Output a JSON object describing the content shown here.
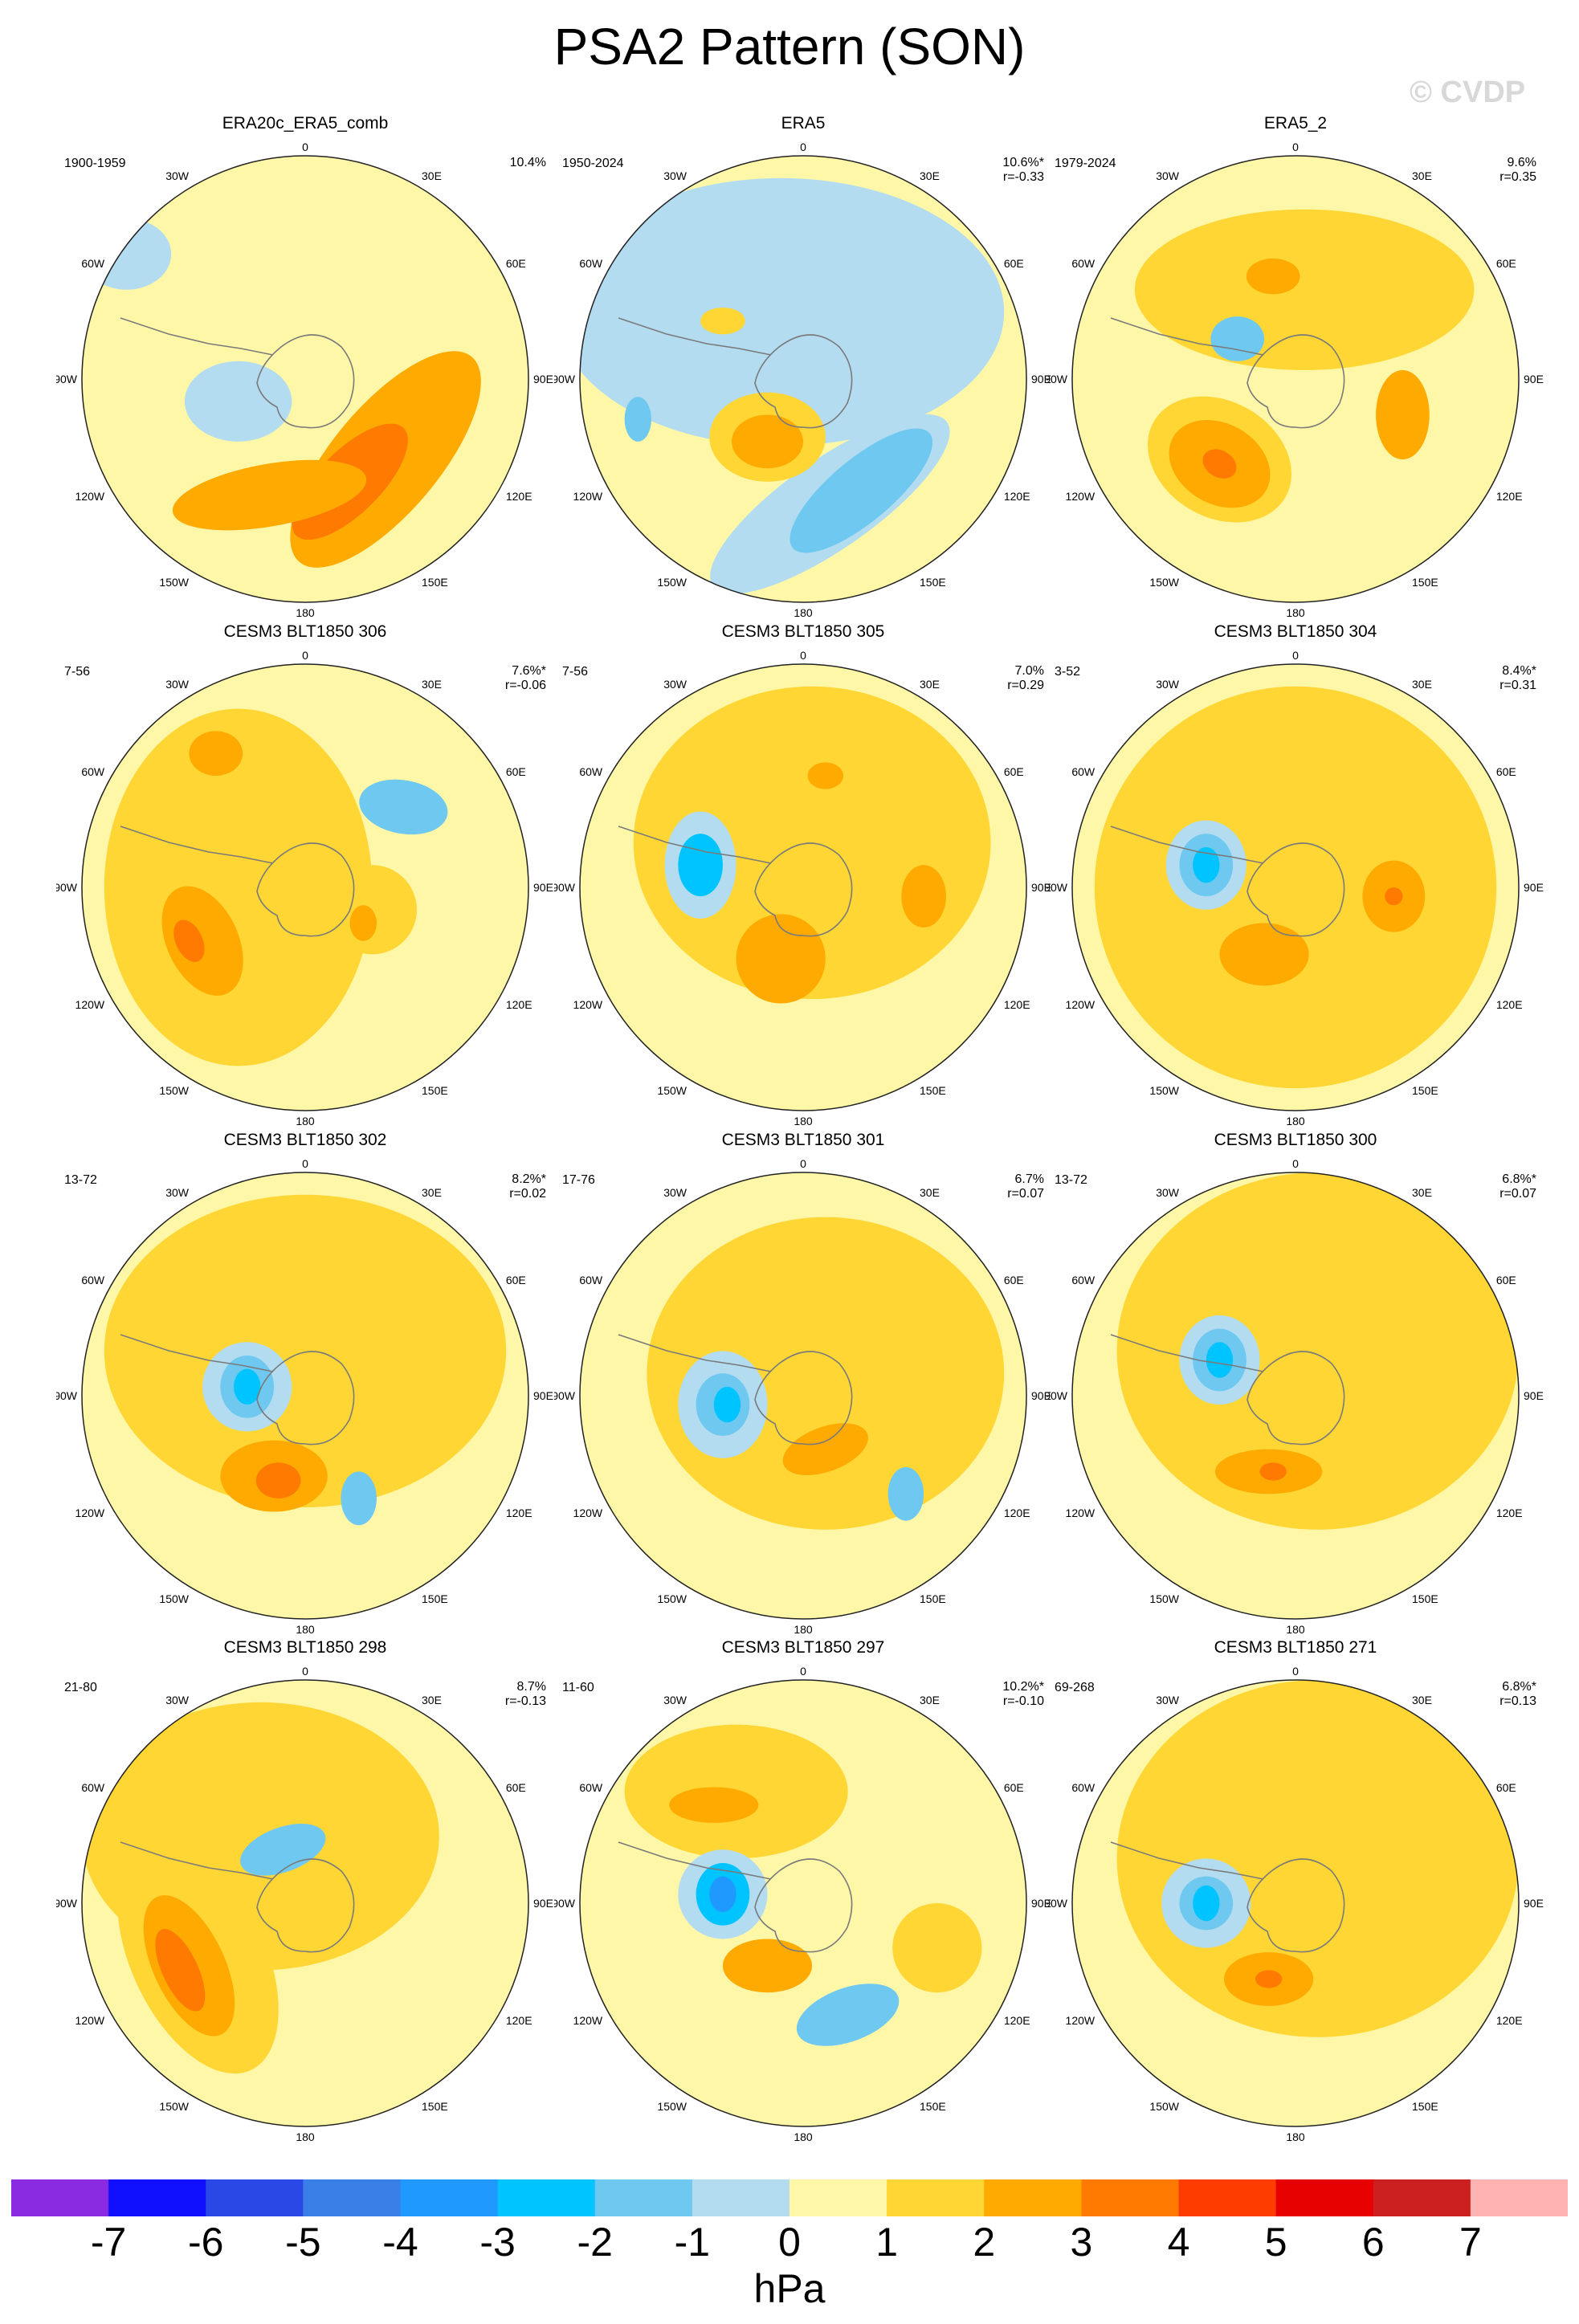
{
  "title": "PSA2 Pattern (SON)",
  "copyright": "© CVDP",
  "map_labels": {
    "top": "0",
    "bottom": "180",
    "left": "90W",
    "right": "90E",
    "ul30": "30W",
    "ul60": "60W",
    "ur30": "30E",
    "ur60": "60E",
    "ll120": "120W",
    "ll150": "150W",
    "lr120": "120E",
    "lr150": "150E"
  },
  "colors": {
    "land_outline": "#7a7a7a",
    "levels": [
      "#8a2be2",
      "#1010ff",
      "#2a48e6",
      "#3a7fe8",
      "#2099ff",
      "#00c4ff",
      "#6fc8f0",
      "#b3dcf0",
      "#fff7a8",
      "#ffd633",
      "#ffaa00",
      "#ff7a00",
      "#ff3c00",
      "#e60000",
      "#cc1f1f",
      "#ffb3b3"
    ]
  },
  "chart_data": [
    {
      "type": "contour-map",
      "title": "ERA20c_ERA5_comb",
      "period": "1900-1959",
      "variance": "10.4%",
      "corr": "",
      "blobs": [
        {
          "x": 0.68,
          "y": 0.68,
          "rx": 0.12,
          "ry": 0.3,
          "rot": 40,
          "v": 2
        },
        {
          "x": 0.6,
          "y": 0.73,
          "rx": 0.07,
          "ry": 0.17,
          "rot": 45,
          "v": 3
        },
        {
          "x": 0.42,
          "y": 0.76,
          "rx": 0.22,
          "ry": 0.07,
          "rot": -10,
          "v": 2
        },
        {
          "x": 0.35,
          "y": 0.55,
          "rx": 0.12,
          "ry": 0.09,
          "rot": 0,
          "v": -1
        },
        {
          "x": 0.1,
          "y": 0.22,
          "rx": 0.1,
          "ry": 0.08,
          "rot": 0,
          "v": -1
        }
      ]
    },
    {
      "type": "contour-map",
      "title": "ERA5",
      "period": "1950-2024",
      "variance": "10.6%*",
      "corr": "r=-0.33",
      "blobs": [
        {
          "x": 0.45,
          "y": 0.35,
          "rx": 0.5,
          "ry": 0.3,
          "rot": 0,
          "v": -1
        },
        {
          "x": 0.56,
          "y": 0.78,
          "rx": 0.32,
          "ry": 0.1,
          "rot": -35,
          "v": -1
        },
        {
          "x": 0.42,
          "y": 0.63,
          "rx": 0.13,
          "ry": 0.1,
          "rot": 0,
          "v": 1
        },
        {
          "x": 0.42,
          "y": 0.64,
          "rx": 0.08,
          "ry": 0.06,
          "rot": 0,
          "v": 2
        },
        {
          "x": 0.63,
          "y": 0.75,
          "rx": 0.2,
          "ry": 0.07,
          "rot": -40,
          "v": -2
        },
        {
          "x": 0.32,
          "y": 0.37,
          "rx": 0.05,
          "ry": 0.03,
          "rot": 0,
          "v": 1
        },
        {
          "x": 0.13,
          "y": 0.59,
          "rx": 0.03,
          "ry": 0.05,
          "rot": 0,
          "v": -2
        }
      ]
    },
    {
      "type": "contour-map",
      "title": "ERA5_2",
      "period": "1979-2024",
      "variance": "9.6%",
      "corr": "r=0.35",
      "blobs": [
        {
          "x": 0.52,
          "y": 0.3,
          "rx": 0.38,
          "ry": 0.18,
          "rot": 0,
          "v": 1
        },
        {
          "x": 0.33,
          "y": 0.68,
          "rx": 0.17,
          "ry": 0.13,
          "rot": 30,
          "v": 1
        },
        {
          "x": 0.33,
          "y": 0.69,
          "rx": 0.12,
          "ry": 0.09,
          "rot": 30,
          "v": 2
        },
        {
          "x": 0.33,
          "y": 0.69,
          "rx": 0.04,
          "ry": 0.03,
          "rot": 30,
          "v": 3
        },
        {
          "x": 0.74,
          "y": 0.58,
          "rx": 0.06,
          "ry": 0.1,
          "rot": 0,
          "v": 2
        },
        {
          "x": 0.37,
          "y": 0.41,
          "rx": 0.06,
          "ry": 0.05,
          "rot": 0,
          "v": -2
        },
        {
          "x": 0.45,
          "y": 0.27,
          "rx": 0.06,
          "ry": 0.04,
          "rot": 0,
          "v": 2
        }
      ]
    },
    {
      "type": "contour-map",
      "title": "CESM3 BLT1850 306",
      "period": "7-56",
      "variance": "7.6%*",
      "corr": "r=-0.06",
      "blobs": [
        {
          "x": 0.35,
          "y": 0.5,
          "rx": 0.3,
          "ry": 0.4,
          "rot": 0,
          "v": 1
        },
        {
          "x": 0.27,
          "y": 0.62,
          "rx": 0.08,
          "ry": 0.13,
          "rot": -25,
          "v": 2
        },
        {
          "x": 0.24,
          "y": 0.62,
          "rx": 0.03,
          "ry": 0.05,
          "rot": -25,
          "v": 3
        },
        {
          "x": 0.65,
          "y": 0.55,
          "rx": 0.1,
          "ry": 0.1,
          "rot": 0,
          "v": 1
        },
        {
          "x": 0.63,
          "y": 0.58,
          "rx": 0.03,
          "ry": 0.04,
          "rot": 0,
          "v": 2
        },
        {
          "x": 0.3,
          "y": 0.2,
          "rx": 0.06,
          "ry": 0.05,
          "rot": 0,
          "v": 2
        },
        {
          "x": 0.72,
          "y": 0.32,
          "rx": 0.1,
          "ry": 0.06,
          "rot": 10,
          "v": -2
        }
      ]
    },
    {
      "type": "contour-map",
      "title": "CESM3 BLT1850 305",
      "period": "7-56",
      "variance": "7.0%",
      "corr": "r=0.29",
      "blobs": [
        {
          "x": 0.52,
          "y": 0.4,
          "rx": 0.4,
          "ry": 0.35,
          "rot": 0,
          "v": 1
        },
        {
          "x": 0.27,
          "y": 0.45,
          "rx": 0.08,
          "ry": 0.12,
          "rot": 0,
          "v": -1
        },
        {
          "x": 0.27,
          "y": 0.45,
          "rx": 0.05,
          "ry": 0.07,
          "rot": 0,
          "v": -3
        },
        {
          "x": 0.45,
          "y": 0.66,
          "rx": 0.1,
          "ry": 0.1,
          "rot": 0,
          "v": 2
        },
        {
          "x": 0.77,
          "y": 0.52,
          "rx": 0.05,
          "ry": 0.07,
          "rot": 0,
          "v": 2
        },
        {
          "x": 0.55,
          "y": 0.25,
          "rx": 0.04,
          "ry": 0.03,
          "rot": 0,
          "v": 2
        }
      ]
    },
    {
      "type": "contour-map",
      "title": "CESM3 BLT1850 304",
      "period": "3-52",
      "variance": "8.4%*",
      "corr": "r=0.31",
      "blobs": [
        {
          "x": 0.5,
          "y": 0.5,
          "rx": 0.45,
          "ry": 0.45,
          "rot": 0,
          "v": 1
        },
        {
          "x": 0.3,
          "y": 0.45,
          "rx": 0.09,
          "ry": 0.1,
          "rot": 0,
          "v": -1
        },
        {
          "x": 0.3,
          "y": 0.45,
          "rx": 0.06,
          "ry": 0.07,
          "rot": 0,
          "v": -2
        },
        {
          "x": 0.3,
          "y": 0.45,
          "rx": 0.03,
          "ry": 0.04,
          "rot": 0,
          "v": -3
        },
        {
          "x": 0.43,
          "y": 0.65,
          "rx": 0.1,
          "ry": 0.07,
          "rot": 0,
          "v": 2
        },
        {
          "x": 0.72,
          "y": 0.52,
          "rx": 0.07,
          "ry": 0.08,
          "rot": 0,
          "v": 2
        },
        {
          "x": 0.72,
          "y": 0.52,
          "rx": 0.02,
          "ry": 0.02,
          "rot": 0,
          "v": 3
        }
      ]
    },
    {
      "type": "contour-map",
      "title": "CESM3 BLT1850 302",
      "period": "13-72",
      "variance": "8.2%*",
      "corr": "r=0.02",
      "blobs": [
        {
          "x": 0.5,
          "y": 0.4,
          "rx": 0.45,
          "ry": 0.35,
          "rot": 0,
          "v": 1
        },
        {
          "x": 0.37,
          "y": 0.48,
          "rx": 0.1,
          "ry": 0.1,
          "rot": 0,
          "v": -1
        },
        {
          "x": 0.37,
          "y": 0.48,
          "rx": 0.06,
          "ry": 0.07,
          "rot": 0,
          "v": -2
        },
        {
          "x": 0.37,
          "y": 0.48,
          "rx": 0.03,
          "ry": 0.04,
          "rot": 0,
          "v": -3
        },
        {
          "x": 0.43,
          "y": 0.68,
          "rx": 0.12,
          "ry": 0.08,
          "rot": 0,
          "v": 2
        },
        {
          "x": 0.44,
          "y": 0.69,
          "rx": 0.05,
          "ry": 0.04,
          "rot": 0,
          "v": 3
        },
        {
          "x": 0.62,
          "y": 0.73,
          "rx": 0.04,
          "ry": 0.06,
          "rot": 0,
          "v": -2
        }
      ]
    },
    {
      "type": "contour-map",
      "title": "CESM3 BLT1850 301",
      "period": "17-76",
      "variance": "6.7%",
      "corr": "r=0.07",
      "blobs": [
        {
          "x": 0.55,
          "y": 0.45,
          "rx": 0.4,
          "ry": 0.35,
          "rot": 0,
          "v": 1
        },
        {
          "x": 0.32,
          "y": 0.52,
          "rx": 0.1,
          "ry": 0.12,
          "rot": 0,
          "v": -1
        },
        {
          "x": 0.32,
          "y": 0.52,
          "rx": 0.06,
          "ry": 0.07,
          "rot": 0,
          "v": -2
        },
        {
          "x": 0.33,
          "y": 0.52,
          "rx": 0.03,
          "ry": 0.04,
          "rot": 0,
          "v": -3
        },
        {
          "x": 0.55,
          "y": 0.62,
          "rx": 0.1,
          "ry": 0.05,
          "rot": -20,
          "v": 2
        },
        {
          "x": 0.73,
          "y": 0.72,
          "rx": 0.04,
          "ry": 0.06,
          "rot": 0,
          "v": -2
        }
      ]
    },
    {
      "type": "contour-map",
      "title": "CESM3 BLT1850 300",
      "period": "13-72",
      "variance": "6.8%*",
      "corr": "r=0.07",
      "blobs": [
        {
          "x": 0.55,
          "y": 0.4,
          "rx": 0.45,
          "ry": 0.4,
          "rot": 0,
          "v": 1
        },
        {
          "x": 0.33,
          "y": 0.42,
          "rx": 0.09,
          "ry": 0.1,
          "rot": 0,
          "v": -1
        },
        {
          "x": 0.33,
          "y": 0.42,
          "rx": 0.06,
          "ry": 0.07,
          "rot": 0,
          "v": -2
        },
        {
          "x": 0.33,
          "y": 0.42,
          "rx": 0.03,
          "ry": 0.04,
          "rot": 0,
          "v": -3
        },
        {
          "x": 0.44,
          "y": 0.67,
          "rx": 0.12,
          "ry": 0.05,
          "rot": 0,
          "v": 2
        },
        {
          "x": 0.45,
          "y": 0.67,
          "rx": 0.03,
          "ry": 0.02,
          "rot": 0,
          "v": 3
        }
      ]
    },
    {
      "type": "contour-map",
      "title": "CESM3 BLT1850 298",
      "period": "21-80",
      "variance": "8.7%",
      "corr": "r=-0.13",
      "blobs": [
        {
          "x": 0.4,
          "y": 0.35,
          "rx": 0.4,
          "ry": 0.3,
          "rot": 0,
          "v": 1
        },
        {
          "x": 0.26,
          "y": 0.62,
          "rx": 0.15,
          "ry": 0.28,
          "rot": -25,
          "v": 1
        },
        {
          "x": 0.24,
          "y": 0.64,
          "rx": 0.08,
          "ry": 0.17,
          "rot": -25,
          "v": 2
        },
        {
          "x": 0.22,
          "y": 0.65,
          "rx": 0.04,
          "ry": 0.1,
          "rot": -25,
          "v": 3
        },
        {
          "x": 0.45,
          "y": 0.38,
          "rx": 0.1,
          "ry": 0.05,
          "rot": -20,
          "v": -2
        },
        {
          "x": 0.58,
          "y": 0.52,
          "rx": 0.07,
          "ry": 0.06,
          "rot": 0,
          "v": 1
        }
      ]
    },
    {
      "type": "contour-map",
      "title": "CESM3 BLT1850 297",
      "period": "11-60",
      "variance": "10.2%*",
      "corr": "r=-0.10",
      "blobs": [
        {
          "x": 0.35,
          "y": 0.25,
          "rx": 0.25,
          "ry": 0.15,
          "rot": 0,
          "v": 1
        },
        {
          "x": 0.3,
          "y": 0.28,
          "rx": 0.1,
          "ry": 0.04,
          "rot": 0,
          "v": 2
        },
        {
          "x": 0.32,
          "y": 0.48,
          "rx": 0.1,
          "ry": 0.1,
          "rot": 0,
          "v": -1
        },
        {
          "x": 0.32,
          "y": 0.48,
          "rx": 0.06,
          "ry": 0.07,
          "rot": 0,
          "v": -3
        },
        {
          "x": 0.32,
          "y": 0.48,
          "rx": 0.03,
          "ry": 0.04,
          "rot": 0,
          "v": -4
        },
        {
          "x": 0.42,
          "y": 0.64,
          "rx": 0.1,
          "ry": 0.06,
          "rot": 0,
          "v": 2
        },
        {
          "x": 0.6,
          "y": 0.75,
          "rx": 0.12,
          "ry": 0.06,
          "rot": -20,
          "v": -2
        },
        {
          "x": 0.8,
          "y": 0.6,
          "rx": 0.1,
          "ry": 0.1,
          "rot": 0,
          "v": 1
        }
      ]
    },
    {
      "type": "contour-map",
      "title": "CESM3 BLT1850 271",
      "period": "69-268",
      "variance": "6.8%*",
      "corr": "r=0.13",
      "blobs": [
        {
          "x": 0.55,
          "y": 0.4,
          "rx": 0.45,
          "ry": 0.4,
          "rot": 0,
          "v": 1
        },
        {
          "x": 0.3,
          "y": 0.5,
          "rx": 0.1,
          "ry": 0.1,
          "rot": 0,
          "v": -1
        },
        {
          "x": 0.3,
          "y": 0.5,
          "rx": 0.06,
          "ry": 0.06,
          "rot": 0,
          "v": -2
        },
        {
          "x": 0.3,
          "y": 0.5,
          "rx": 0.03,
          "ry": 0.04,
          "rot": 0,
          "v": -3
        },
        {
          "x": 0.44,
          "y": 0.67,
          "rx": 0.1,
          "ry": 0.06,
          "rot": 0,
          "v": 2
        },
        {
          "x": 0.44,
          "y": 0.67,
          "rx": 0.03,
          "ry": 0.02,
          "rot": 0,
          "v": 3
        }
      ]
    }
  ],
  "colorbar": {
    "labels": [
      "-7",
      "-6",
      "-5",
      "-4",
      "-3",
      "-2",
      "-1",
      "0",
      "1",
      "2",
      "3",
      "4",
      "5",
      "6",
      "7"
    ],
    "unit": "hPa"
  }
}
